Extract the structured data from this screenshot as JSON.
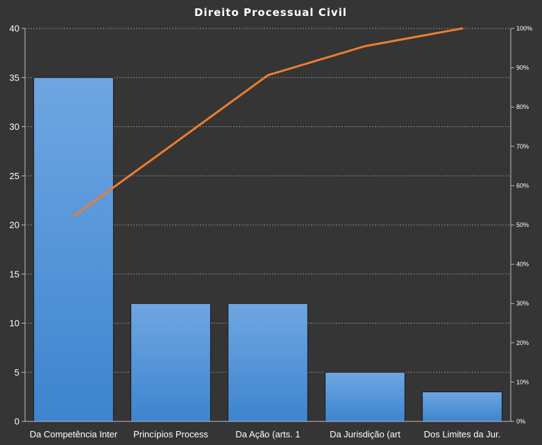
{
  "chart_data": {
    "type": "bar",
    "title": "Direito  Processual  Civil",
    "categories": [
      "Da Competência Inter",
      "Princípios Process",
      "Da Ação (arts. 1",
      "Da Jurisdição (art",
      "Dos Limites da Jur."
    ],
    "values": [
      35,
      12,
      12,
      5,
      3
    ],
    "ylim": [
      0,
      40
    ],
    "y_ticks": [
      0,
      5,
      10,
      15,
      20,
      25,
      30,
      35,
      40
    ],
    "y2lim": [
      0,
      100
    ],
    "y2_ticks": [
      "0%",
      "10%",
      "20%",
      "30%",
      "40%",
      "50%",
      "60%",
      "70%",
      "80%",
      "90%",
      "100%"
    ],
    "cumulative_percent": [
      52.2,
      70.1,
      88.1,
      95.5,
      100
    ],
    "grid": true,
    "colors": {
      "background": "#353535",
      "bar_top": "#6fa6e2",
      "bar_bottom": "#3d85cf",
      "bar_border": "#1a1a1a",
      "line": "#ed7d31",
      "grid": "#8a8a8a",
      "text": "#ffffff"
    }
  }
}
